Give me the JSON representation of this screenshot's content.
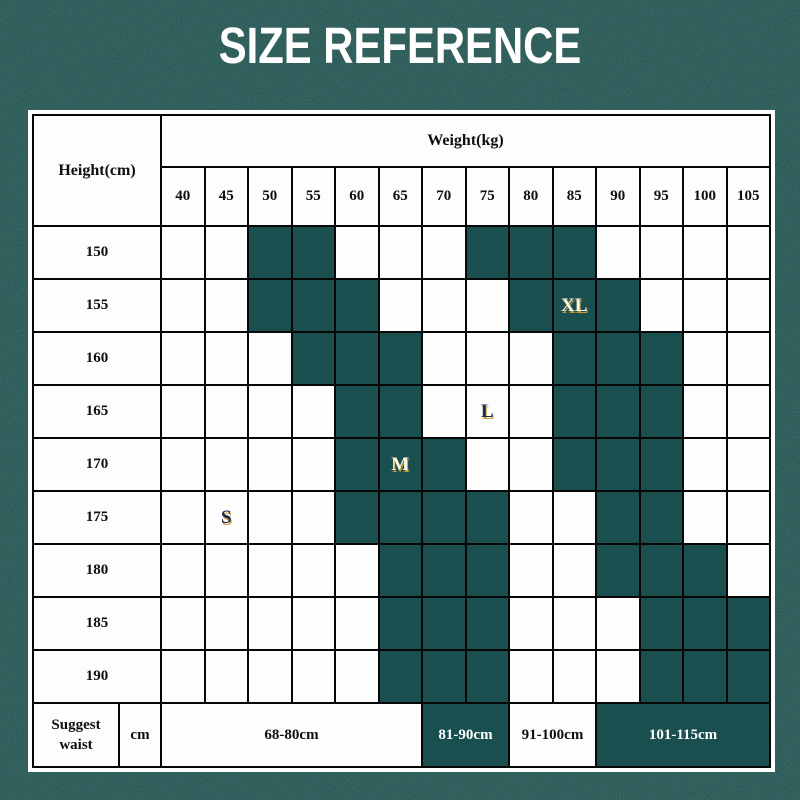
{
  "title": "SIZE REFERENCE",
  "colors": {
    "page_background": "#1e5450",
    "cell_fill_teal": "#1a4f4f",
    "cell_white": "#fdfdfd",
    "grid_line": "#060606",
    "table_border": "#ffffff",
    "size_letter_light": "#fdf7e2",
    "size_letter_dark": "#17294e",
    "size_letter_glint": "#c79e3b",
    "title_text": "#ffffff"
  },
  "chart_data": {
    "type": "table",
    "title": "SIZE REFERENCE",
    "rows_header": "Height(cm)",
    "columns_header": "Weight(kg)",
    "weight_categories": [
      "40",
      "45",
      "50",
      "55",
      "60",
      "65",
      "70",
      "75",
      "80",
      "85",
      "90",
      "95",
      "100",
      "105"
    ],
    "height_rows": [
      {
        "height": "150",
        "filled_weights": [
          "50",
          "55",
          "75",
          "80",
          "85"
        ],
        "size_labels": {}
      },
      {
        "height": "155",
        "filled_weights": [
          "50",
          "55",
          "60",
          "80",
          "85",
          "90"
        ],
        "size_labels": {
          "85": "XL"
        }
      },
      {
        "height": "160",
        "filled_weights": [
          "55",
          "60",
          "65",
          "85",
          "90",
          "95"
        ],
        "size_labels": {}
      },
      {
        "height": "165",
        "filled_weights": [
          "60",
          "65",
          "85",
          "90",
          "95"
        ],
        "size_labels": {
          "75": "L"
        }
      },
      {
        "height": "170",
        "filled_weights": [
          "60",
          "65",
          "70",
          "85",
          "90",
          "95"
        ],
        "size_labels": {
          "65": "M"
        }
      },
      {
        "height": "175",
        "filled_weights": [
          "60",
          "65",
          "70",
          "75",
          "90",
          "95"
        ],
        "size_labels": {
          "45": "S"
        }
      },
      {
        "height": "180",
        "filled_weights": [
          "65",
          "70",
          "75",
          "90",
          "95",
          "100"
        ],
        "size_labels": {}
      },
      {
        "height": "185",
        "filled_weights": [
          "65",
          "70",
          "75",
          "95",
          "100",
          "105"
        ],
        "size_labels": {}
      },
      {
        "height": "190",
        "filled_weights": [
          "65",
          "70",
          "75",
          "95",
          "100",
          "105"
        ],
        "size_labels": {}
      }
    ],
    "size_names": [
      "S",
      "M",
      "L",
      "XL"
    ],
    "footer": {
      "row_header_line1": "Suggest",
      "row_header_line2": "waist",
      "unit": "cm",
      "segments": [
        {
          "label": "68-80cm",
          "span": 6,
          "filled": false
        },
        {
          "label": "81-90cm",
          "span": 2,
          "filled": true
        },
        {
          "label": "91-100cm",
          "span": 2,
          "filled": false
        },
        {
          "label": "101-115cm",
          "span": 4,
          "filled": true
        }
      ]
    }
  }
}
